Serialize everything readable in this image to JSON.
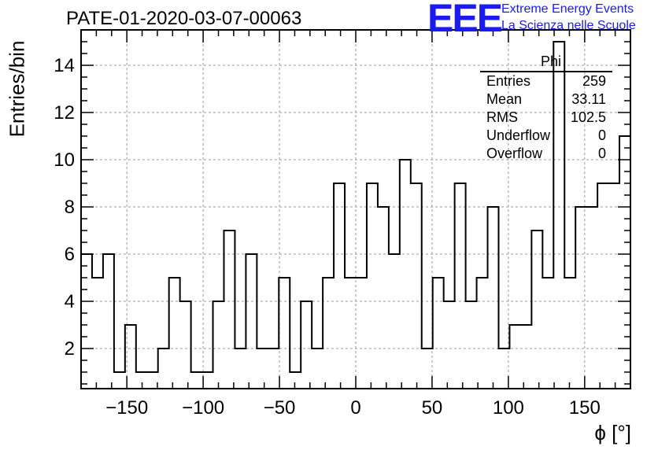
{
  "header": {
    "title": "PATE-01-2020-03-07-00063",
    "logo_text": "EEE",
    "logo_line1": "Extreme Energy Events",
    "logo_line2": "La Scienza nelle Scuole",
    "logo_color": "#1b1bf0"
  },
  "stats": {
    "name": "Phi",
    "rows": [
      {
        "label": "Entries",
        "value": "259"
      },
      {
        "label": "Mean",
        "value": "33.11"
      },
      {
        "label": "RMS",
        "value": "102.5"
      },
      {
        "label": "Underflow",
        "value": "0"
      },
      {
        "label": "Overflow",
        "value": "0"
      }
    ]
  },
  "chart_data": {
    "type": "histogram",
    "title": "PATE-01-2020-03-07-00063",
    "xlabel": "ϕ [°]",
    "ylabel": "Entries/bin",
    "xlim": [
      -180,
      180
    ],
    "ylim": [
      0.3,
      15.5
    ],
    "bin_width": 7.2,
    "x_ticks": [
      -150,
      -100,
      -50,
      0,
      50,
      100,
      150
    ],
    "x_tick_labels": [
      "−150",
      "−100",
      "−50",
      "0",
      "50",
      "100",
      "150"
    ],
    "y_ticks": [
      2,
      4,
      6,
      8,
      10,
      12,
      14
    ],
    "y_tick_labels": [
      "2",
      "4",
      "6",
      "8",
      "10",
      "12",
      "14"
    ],
    "grid": true,
    "values": [
      6,
      5,
      6,
      1,
      3,
      1,
      1,
      2,
      5,
      4,
      1,
      1,
      4,
      7,
      2,
      6,
      2,
      2,
      5,
      1,
      4,
      2,
      5,
      9,
      5,
      5,
      9,
      8,
      6,
      10,
      9,
      2,
      5,
      4,
      9,
      4,
      5,
      8,
      2,
      3,
      3,
      7,
      5,
      15,
      5,
      8,
      8,
      9,
      9,
      11
    ]
  }
}
